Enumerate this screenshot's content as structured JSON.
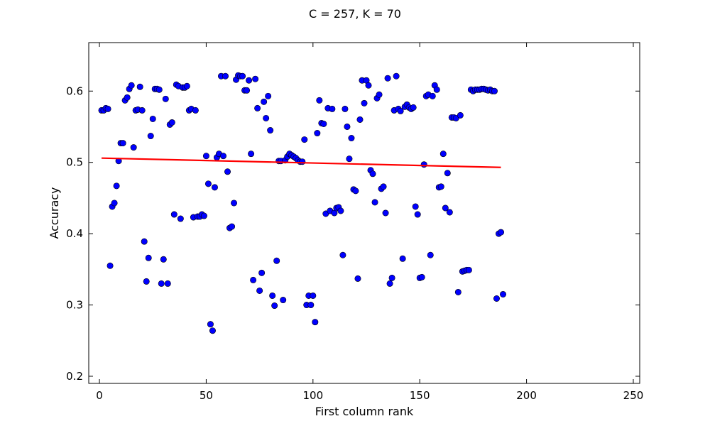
{
  "chart_data": {
    "type": "scatter",
    "title": "C = 257, K = 70",
    "xlabel": "First column rank",
    "ylabel": "Accuracy",
    "xlim": [
      -5,
      253
    ],
    "ylim": [
      0.19,
      0.668
    ],
    "xticks": [
      0,
      50,
      100,
      150,
      200,
      250
    ],
    "yticks": [
      0.2,
      0.3,
      0.4,
      0.5,
      0.6
    ],
    "ytick_labels": [
      "0.2",
      "0.3",
      "0.4",
      "0.5",
      "0.6"
    ],
    "grid": false,
    "colors": {
      "points": "#0000ff",
      "trend": "#ff0000"
    },
    "trend_line": {
      "x": [
        1,
        188
      ],
      "y": [
        0.506,
        0.493
      ]
    },
    "points": [
      [
        1,
        0.573
      ],
      [
        2,
        0.573
      ],
      [
        3,
        0.576
      ],
      [
        4,
        0.575
      ],
      [
        5,
        0.355
      ],
      [
        6,
        0.438
      ],
      [
        7,
        0.443
      ],
      [
        8,
        0.467
      ],
      [
        9,
        0.502
      ],
      [
        10,
        0.527
      ],
      [
        11,
        0.527
      ],
      [
        12,
        0.587
      ],
      [
        13,
        0.591
      ],
      [
        14,
        0.603
      ],
      [
        15,
        0.608
      ],
      [
        16,
        0.521
      ],
      [
        17,
        0.573
      ],
      [
        18,
        0.574
      ],
      [
        19,
        0.606
      ],
      [
        20,
        0.573
      ],
      [
        21,
        0.389
      ],
      [
        22,
        0.333
      ],
      [
        23,
        0.366
      ],
      [
        24,
        0.537
      ],
      [
        25,
        0.561
      ],
      [
        26,
        0.603
      ],
      [
        27,
        0.603
      ],
      [
        28,
        0.602
      ],
      [
        29,
        0.33
      ],
      [
        30,
        0.364
      ],
      [
        31,
        0.589
      ],
      [
        32,
        0.33
      ],
      [
        33,
        0.553
      ],
      [
        34,
        0.556
      ],
      [
        35,
        0.427
      ],
      [
        36,
        0.609
      ],
      [
        37,
        0.607
      ],
      [
        38,
        0.421
      ],
      [
        39,
        0.605
      ],
      [
        40,
        0.605
      ],
      [
        41,
        0.607
      ],
      [
        42,
        0.573
      ],
      [
        43,
        0.575
      ],
      [
        44,
        0.423
      ],
      [
        45,
        0.573
      ],
      [
        46,
        0.424
      ],
      [
        47,
        0.424
      ],
      [
        48,
        0.427
      ],
      [
        49,
        0.425
      ],
      [
        50,
        0.509
      ],
      [
        51,
        0.47
      ],
      [
        52,
        0.273
      ],
      [
        53,
        0.264
      ],
      [
        54,
        0.465
      ],
      [
        55,
        0.507
      ],
      [
        56,
        0.512
      ],
      [
        57,
        0.621
      ],
      [
        58,
        0.509
      ],
      [
        59,
        0.621
      ],
      [
        60,
        0.487
      ],
      [
        61,
        0.408
      ],
      [
        62,
        0.41
      ],
      [
        63,
        0.443
      ],
      [
        64,
        0.616
      ],
      [
        65,
        0.622
      ],
      [
        66,
        0.621
      ],
      [
        67,
        0.621
      ],
      [
        68,
        0.601
      ],
      [
        69,
        0.601
      ],
      [
        70,
        0.615
      ],
      [
        71,
        0.512
      ],
      [
        72,
        0.335
      ],
      [
        73,
        0.617
      ],
      [
        74,
        0.576
      ],
      [
        75,
        0.32
      ],
      [
        76,
        0.345
      ],
      [
        77,
        0.585
      ],
      [
        78,
        0.562
      ],
      [
        79,
        0.593
      ],
      [
        80,
        0.545
      ],
      [
        81,
        0.313
      ],
      [
        82,
        0.299
      ],
      [
        83,
        0.362
      ],
      [
        84,
        0.502
      ],
      [
        85,
        0.502
      ],
      [
        86,
        0.307
      ],
      [
        87,
        0.503
      ],
      [
        88,
        0.508
      ],
      [
        89,
        0.512
      ],
      [
        90,
        0.51
      ],
      [
        91,
        0.508
      ],
      [
        92,
        0.506
      ],
      [
        93,
        0.503
      ],
      [
        94,
        0.501
      ],
      [
        95,
        0.501
      ],
      [
        96,
        0.532
      ],
      [
        97,
        0.3
      ],
      [
        98,
        0.313
      ],
      [
        99,
        0.3
      ],
      [
        100,
        0.313
      ],
      [
        101,
        0.276
      ],
      [
        102,
        0.541
      ],
      [
        103,
        0.587
      ],
      [
        104,
        0.555
      ],
      [
        105,
        0.554
      ],
      [
        106,
        0.428
      ],
      [
        107,
        0.576
      ],
      [
        108,
        0.432
      ],
      [
        109,
        0.575
      ],
      [
        110,
        0.429
      ],
      [
        111,
        0.436
      ],
      [
        112,
        0.437
      ],
      [
        113,
        0.432
      ],
      [
        114,
        0.37
      ],
      [
        115,
        0.575
      ],
      [
        116,
        0.55
      ],
      [
        117,
        0.505
      ],
      [
        118,
        0.534
      ],
      [
        119,
        0.462
      ],
      [
        120,
        0.46
      ],
      [
        121,
        0.337
      ],
      [
        122,
        0.56
      ],
      [
        123,
        0.615
      ],
      [
        124,
        0.583
      ],
      [
        125,
        0.615
      ],
      [
        126,
        0.608
      ],
      [
        127,
        0.489
      ],
      [
        128,
        0.484
      ],
      [
        129,
        0.444
      ],
      [
        130,
        0.59
      ],
      [
        131,
        0.595
      ],
      [
        132,
        0.463
      ],
      [
        133,
        0.466
      ],
      [
        134,
        0.429
      ],
      [
        135,
        0.618
      ],
      [
        136,
        0.33
      ],
      [
        137,
        0.338
      ],
      [
        138,
        0.573
      ],
      [
        139,
        0.621
      ],
      [
        140,
        0.575
      ],
      [
        141,
        0.572
      ],
      [
        142,
        0.365
      ],
      [
        143,
        0.578
      ],
      [
        144,
        0.581
      ],
      [
        145,
        0.577
      ],
      [
        146,
        0.575
      ],
      [
        147,
        0.577
      ],
      [
        148,
        0.438
      ],
      [
        149,
        0.427
      ],
      [
        150,
        0.338
      ],
      [
        151,
        0.339
      ],
      [
        152,
        0.497
      ],
      [
        153,
        0.593
      ],
      [
        154,
        0.595
      ],
      [
        155,
        0.37
      ],
      [
        156,
        0.593
      ],
      [
        157,
        0.608
      ],
      [
        158,
        0.602
      ],
      [
        159,
        0.465
      ],
      [
        160,
        0.466
      ],
      [
        161,
        0.512
      ],
      [
        162,
        0.436
      ],
      [
        163,
        0.485
      ],
      [
        164,
        0.43
      ],
      [
        165,
        0.563
      ],
      [
        166,
        0.563
      ],
      [
        167,
        0.562
      ],
      [
        168,
        0.318
      ],
      [
        169,
        0.566
      ],
      [
        170,
        0.347
      ],
      [
        171,
        0.348
      ],
      [
        172,
        0.349
      ],
      [
        173,
        0.349
      ],
      [
        174,
        0.602
      ],
      [
        175,
        0.6
      ],
      [
        176,
        0.602
      ],
      [
        177,
        0.602
      ],
      [
        178,
        0.602
      ],
      [
        179,
        0.603
      ],
      [
        180,
        0.603
      ],
      [
        181,
        0.602
      ],
      [
        182,
        0.601
      ],
      [
        183,
        0.602
      ],
      [
        184,
        0.6
      ],
      [
        185,
        0.6
      ],
      [
        186,
        0.309
      ],
      [
        187,
        0.4
      ],
      [
        188,
        0.402
      ],
      [
        189,
        0.315
      ]
    ]
  }
}
